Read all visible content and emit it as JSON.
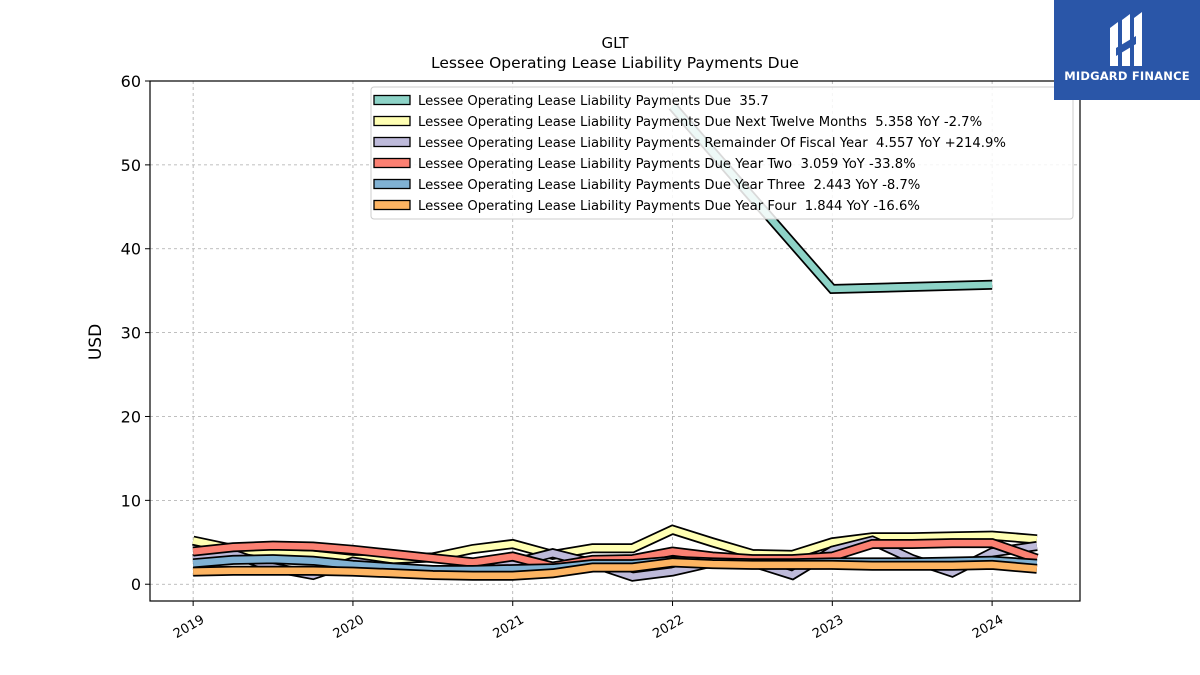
{
  "chart_data": {
    "type": "line",
    "ticker": "GLT",
    "title": "Lessee Operating Lease Liability Payments Due",
    "ylabel": "USD",
    "xlabel": "",
    "ylim": [
      -2,
      60
    ],
    "xlim": [
      2018.73,
      2024.55
    ],
    "yticks": [
      0,
      10,
      20,
      30,
      40,
      50,
      60
    ],
    "xticks": [
      2019,
      2020,
      2021,
      2022,
      2023,
      2024
    ],
    "xtick_labels": [
      "2019",
      "2020",
      "2021",
      "2022",
      "2023",
      "2024"
    ],
    "grid": true,
    "legend_position": "top-right",
    "series": [
      {
        "name": "Lessee Operating Lease Liability Payments Due",
        "legend": "Lessee Operating Lease Liability Payments Due  35.7",
        "color": "#8dd3c7",
        "points": [
          [
            2022.0,
            57.0
          ],
          [
            2023.0,
            35.2
          ],
          [
            2024.0,
            35.7
          ]
        ]
      },
      {
        "name": "Lessee Operating Lease Liability Payments Due Next Twelve Months",
        "legend": "Lessee Operating Lease Liability Payments Due Next Twelve Months  5.358 YoY -2.7%",
        "color": "#ffffb3",
        "points": [
          [
            2019.0,
            5.2
          ],
          [
            2019.25,
            4.2
          ],
          [
            2019.5,
            3.7
          ],
          [
            2019.75,
            3.5
          ],
          [
            2020.0,
            3.0
          ],
          [
            2020.25,
            3.0
          ],
          [
            2020.5,
            3.2
          ],
          [
            2020.75,
            4.2
          ],
          [
            2021.0,
            4.8
          ],
          [
            2021.25,
            3.5
          ],
          [
            2021.5,
            4.3
          ],
          [
            2021.75,
            4.3
          ],
          [
            2022.0,
            6.5
          ],
          [
            2022.25,
            5.0
          ],
          [
            2022.5,
            3.6
          ],
          [
            2022.75,
            3.5
          ],
          [
            2023.0,
            5.0
          ],
          [
            2023.25,
            5.6
          ],
          [
            2023.5,
            5.6
          ],
          [
            2023.75,
            5.7
          ],
          [
            2024.0,
            5.8
          ],
          [
            2024.28,
            5.36
          ]
        ]
      },
      {
        "name": "Lessee Operating Lease Liability Payments Remainder Of Fiscal Year",
        "legend": "Lessee Operating Lease Liability Payments Remainder Of Fiscal Year  4.557 YoY +214.9%",
        "color": "#bebada",
        "points": [
          [
            2019.0,
            3.0
          ],
          [
            2019.25,
            3.6
          ],
          [
            2019.5,
            2.0
          ],
          [
            2019.75,
            1.1
          ],
          [
            2020.0,
            2.7
          ],
          [
            2020.25,
            2.0
          ],
          [
            2020.5,
            1.6
          ],
          [
            2020.75,
            1.4
          ],
          [
            2021.0,
            2.5
          ],
          [
            2021.25,
            3.7
          ],
          [
            2021.5,
            2.5
          ],
          [
            2021.75,
            0.9
          ],
          [
            2022.0,
            1.5
          ],
          [
            2022.25,
            2.6
          ],
          [
            2022.5,
            2.6
          ],
          [
            2022.75,
            1.1
          ],
          [
            2023.0,
            4.0
          ],
          [
            2023.25,
            5.2
          ],
          [
            2023.5,
            3.0
          ],
          [
            2023.75,
            1.4
          ],
          [
            2024.0,
            3.8
          ],
          [
            2024.28,
            4.56
          ]
        ]
      },
      {
        "name": "Lessee Operating Lease Liability Payments Due Year Two",
        "legend": "Lessee Operating Lease Liability Payments Due Year Two  3.059 YoY -33.8%",
        "color": "#fb8072",
        "points": [
          [
            2019.0,
            3.9
          ],
          [
            2019.25,
            4.4
          ],
          [
            2019.5,
            4.6
          ],
          [
            2019.75,
            4.5
          ],
          [
            2020.0,
            4.1
          ],
          [
            2020.25,
            3.6
          ],
          [
            2020.5,
            3.1
          ],
          [
            2020.75,
            2.6
          ],
          [
            2021.0,
            3.3
          ],
          [
            2021.25,
            2.1
          ],
          [
            2021.5,
            2.9
          ],
          [
            2021.75,
            3.0
          ],
          [
            2022.0,
            3.9
          ],
          [
            2022.25,
            3.3
          ],
          [
            2022.5,
            3.0
          ],
          [
            2022.75,
            3.0
          ],
          [
            2023.0,
            3.3
          ],
          [
            2023.25,
            4.8
          ],
          [
            2023.5,
            4.8
          ],
          [
            2023.75,
            4.9
          ],
          [
            2024.0,
            4.9
          ],
          [
            2024.28,
            3.06
          ]
        ]
      },
      {
        "name": "Lessee Operating Lease Liability Payments Due Year Three",
        "legend": "Lessee Operating Lease Liability Payments Due Year Three  2.443 YoY -8.7%",
        "color": "#80b1d3",
        "points": [
          [
            2019.0,
            2.5
          ],
          [
            2019.25,
            2.9
          ],
          [
            2019.5,
            3.0
          ],
          [
            2019.75,
            2.8
          ],
          [
            2020.0,
            2.3
          ],
          [
            2020.25,
            2.0
          ],
          [
            2020.5,
            1.7
          ],
          [
            2020.75,
            1.7
          ],
          [
            2021.0,
            1.8
          ],
          [
            2021.25,
            1.9
          ],
          [
            2021.5,
            2.4
          ],
          [
            2021.75,
            2.4
          ],
          [
            2022.0,
            2.8
          ],
          [
            2022.25,
            2.6
          ],
          [
            2022.5,
            2.5
          ],
          [
            2022.75,
            2.5
          ],
          [
            2023.0,
            2.6
          ],
          [
            2023.25,
            2.6
          ],
          [
            2023.5,
            2.6
          ],
          [
            2023.75,
            2.7
          ],
          [
            2024.0,
            2.8
          ],
          [
            2024.28,
            2.44
          ]
        ]
      },
      {
        "name": "Lessee Operating Lease Liability Payments Due Year Four",
        "legend": "Lessee Operating Lease Liability Payments Due Year Four  1.844 YoY -16.6%",
        "color": "#fdb462",
        "points": [
          [
            2019.0,
            1.5
          ],
          [
            2019.25,
            1.6
          ],
          [
            2019.5,
            1.6
          ],
          [
            2019.75,
            1.6
          ],
          [
            2020.0,
            1.5
          ],
          [
            2020.25,
            1.3
          ],
          [
            2020.5,
            1.1
          ],
          [
            2020.75,
            1.0
          ],
          [
            2021.0,
            1.0
          ],
          [
            2021.25,
            1.3
          ],
          [
            2021.5,
            2.0
          ],
          [
            2021.75,
            2.0
          ],
          [
            2022.0,
            2.6
          ],
          [
            2022.25,
            2.4
          ],
          [
            2022.5,
            2.3
          ],
          [
            2022.75,
            2.3
          ],
          [
            2023.0,
            2.3
          ],
          [
            2023.25,
            2.2
          ],
          [
            2023.5,
            2.2
          ],
          [
            2023.75,
            2.2
          ],
          [
            2024.0,
            2.3
          ],
          [
            2024.28,
            1.84
          ]
        ]
      }
    ]
  },
  "logo": {
    "text": "MIDGARD FINANCE",
    "icon": "midgard-mark-icon",
    "background": "#2a56a8"
  }
}
